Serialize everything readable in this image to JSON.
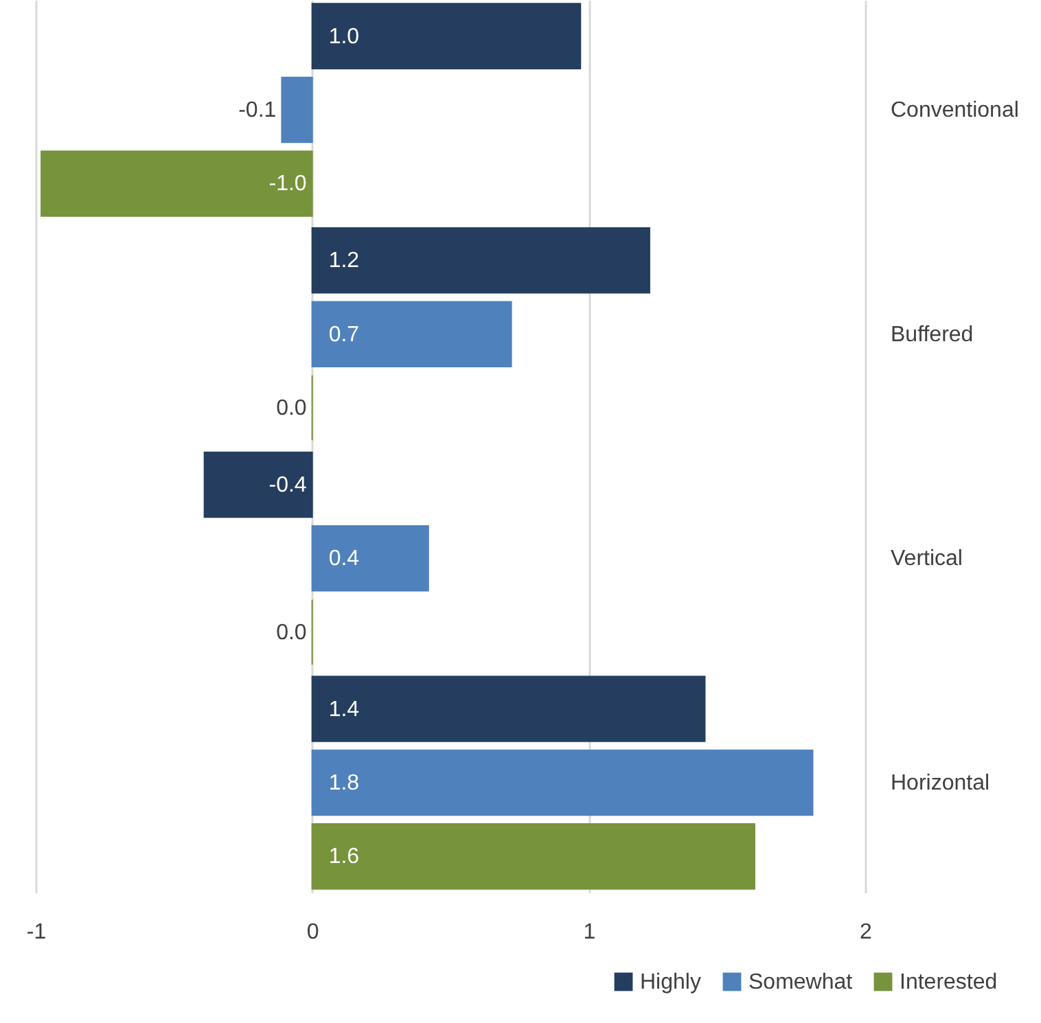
{
  "chart_data": {
    "type": "bar",
    "orientation": "horizontal",
    "categories": [
      "Conventional",
      "Buffered",
      "Vertical",
      "Horizontal"
    ],
    "series": [
      {
        "name": "Highly",
        "color": "#253e5f",
        "values": [
          0.97,
          1.22,
          -0.39,
          1.42
        ],
        "value_labels": [
          "1.0",
          "1.2",
          "-0.4",
          "1.4"
        ]
      },
      {
        "name": "Somewhat",
        "color": "#4f81bd",
        "values": [
          -0.11,
          0.72,
          0.42,
          1.81
        ],
        "value_labels": [
          "-0.1",
          "0.7",
          "0.4",
          "1.8"
        ]
      },
      {
        "name": "Interested",
        "color": "#77933c",
        "values": [
          -0.98,
          0,
          0,
          1.6
        ],
        "value_labels": [
          "-1.0",
          "0.0",
          "0.0",
          "1.6"
        ]
      }
    ],
    "xlim": [
      -1,
      2
    ],
    "xticks": [
      {
        "value": -1,
        "label": "-1"
      },
      {
        "value": 0,
        "label": "0"
      },
      {
        "value": 1,
        "label": "1"
      },
      {
        "value": 2,
        "label": "2"
      }
    ],
    "grid": "x",
    "legend": "bottom right"
  }
}
